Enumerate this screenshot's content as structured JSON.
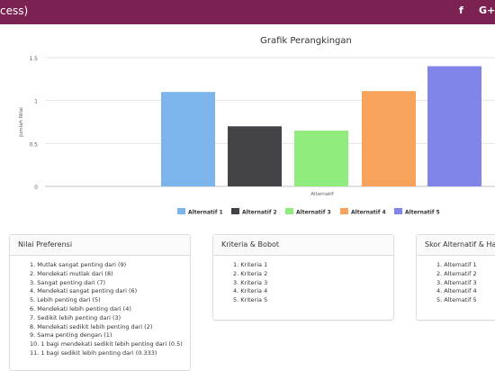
{
  "header": {
    "title": "cess)",
    "facebook_label": "f",
    "google_label": "G+",
    "bg_color": "#7b2252"
  },
  "chart_data": {
    "type": "bar",
    "title": "Grafik Perangkingan",
    "xlabel": "Alternatif",
    "ylabel": "Jumlah Nilai",
    "ylim": [
      0,
      1.5
    ],
    "yticks": [
      "0",
      "0.5",
      "1",
      "1.5"
    ],
    "legend_position": "bottom",
    "series": [
      {
        "name": "Alternatif 1",
        "value": 1.1,
        "color": "#7cb5ec"
      },
      {
        "name": "Alternatif 2",
        "value": 0.7,
        "color": "#434348"
      },
      {
        "name": "Alternatif 3",
        "value": 0.65,
        "color": "#90ed7d"
      },
      {
        "name": "Alternatif 4",
        "value": 1.11,
        "color": "#f7a35c"
      },
      {
        "name": "Alternatif 5",
        "value": 1.4,
        "color": "#8085e9"
      }
    ]
  },
  "panels": {
    "preferensi": {
      "title": "Nilai Preferensi",
      "items": [
        "1. Mutlak sangat penting dari (9)",
        "2. Mendekati mutlak dari (8)",
        "3. Sangat penting dari (7)",
        "4. Mendekati sangat penting dari (6)",
        "5. Lebih penting dari (5)",
        "6. Mendekati lebih penting dari (4)",
        "7. Sedikit lebih penting dari (3)",
        "8. Mendekati sedikit lebih penting dari (2)",
        "9. Sama penting dengan (1)",
        "10. 1 bagi mendekati sedikit lebih penting dari (0.5)",
        "11. 1 bagi sedikit lebih penting dari (0.333)"
      ]
    },
    "kriteria": {
      "title": "Kriteria & Bobot",
      "items": [
        "1. Kriteria 1",
        "2. Kriteria 2",
        "3. Kriteria 3",
        "4. Kriteria 4",
        "5. Kriteria 5"
      ]
    },
    "skor": {
      "title": "Skor Alternatif & Has",
      "items": [
        "1. Alternatif 1",
        "2. Alternatif 2",
        "3. Alternatif 3",
        "4. Alternatif 4",
        "5. Alternatif 5"
      ]
    }
  }
}
